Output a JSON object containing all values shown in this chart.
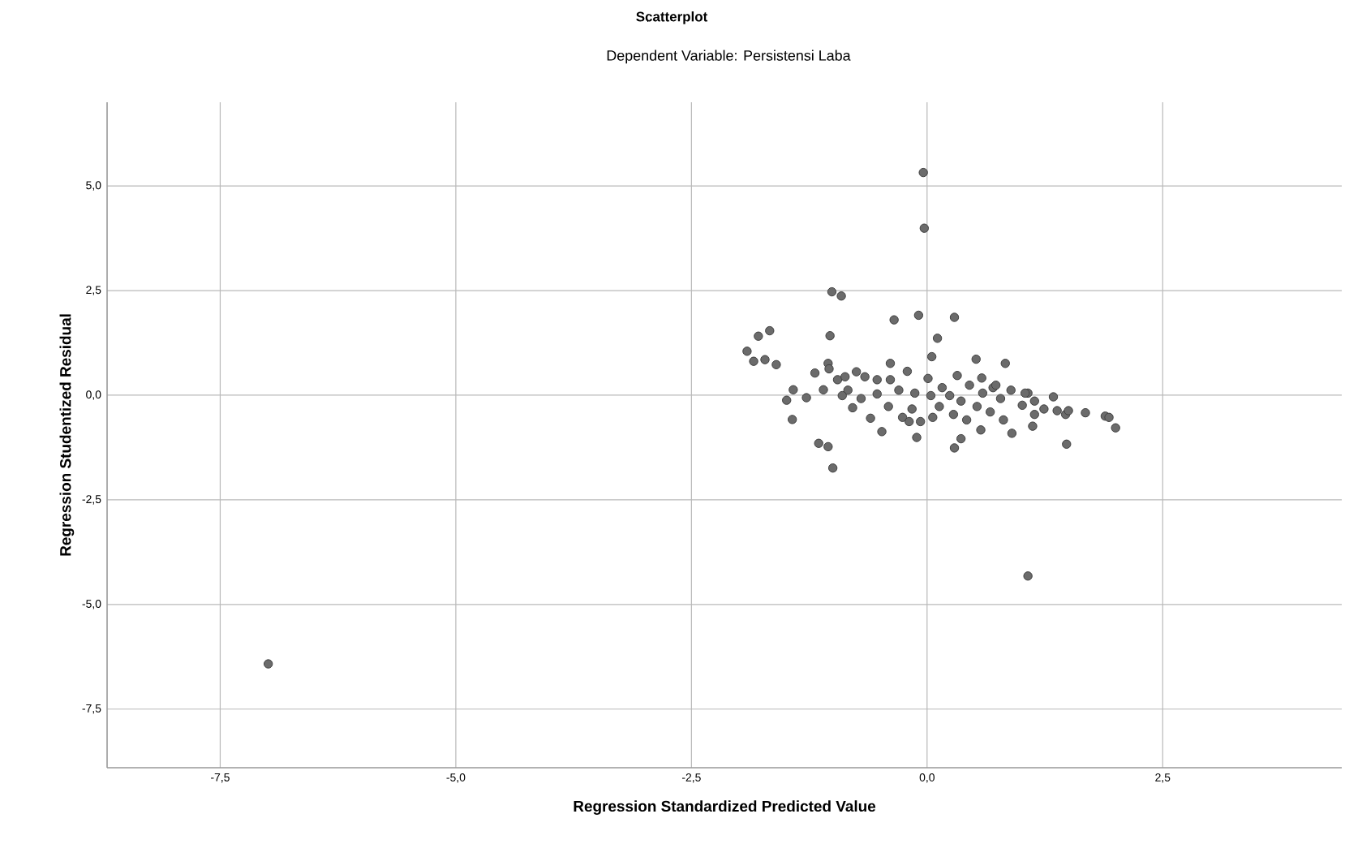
{
  "chart_data": {
    "type": "scatter",
    "title": "Scatterplot",
    "subtitle": "Dependent Variable: Persistensi Laba",
    "xlabel": "Regression Standardized Predicted Value",
    "ylabel": "Regression Studentized Residual",
    "xlim": [
      -8.7,
      4.4
    ],
    "ylim": [
      -8.9,
      7.0
    ],
    "xticks": [
      {
        "value": -7.5,
        "label": "-7,5"
      },
      {
        "value": -5,
        "label": "-5,0"
      },
      {
        "value": -2.5,
        "label": "-2,5"
      },
      {
        "value": 0,
        "label": "0,0"
      },
      {
        "value": 2.5,
        "label": "2,5"
      }
    ],
    "yticks": [
      {
        "value": -7.5,
        "label": "-7,5"
      },
      {
        "value": -5,
        "label": "-5,0"
      },
      {
        "value": -2.5,
        "label": "-2,5"
      },
      {
        "value": 0,
        "label": "0,0"
      },
      {
        "value": 2.5,
        "label": "2,5"
      },
      {
        "value": 5,
        "label": "5,0"
      }
    ],
    "grid": true,
    "marker": "circle",
    "series": [
      {
        "color": "#6b6b6b",
        "x": [
          -6.99,
          -0.04,
          -0.03,
          -1.01,
          -0.91,
          -0.09,
          -0.35,
          0.29,
          -1.03,
          -1.67,
          -1.79,
          0.11,
          -1.91,
          -1.84,
          -1.72,
          -1.6,
          0.05,
          0.52,
          0.83,
          -1.19,
          -1.05,
          -1.42,
          -1.49,
          -1.28,
          -1.43,
          -1.1,
          -1.15,
          -1.05,
          -1.0,
          -0.6,
          -0.48,
          -0.11,
          0.29,
          0.36,
          0.57,
          0.9,
          -1.04,
          -0.95,
          -0.87,
          -0.75,
          -0.84,
          -0.9,
          -0.79,
          -0.7,
          -0.66,
          -0.53,
          -0.53,
          -0.39,
          -0.41,
          -0.39,
          -0.3,
          -0.21,
          -0.26,
          -0.19,
          -0.16,
          -0.13,
          -0.07,
          0.01,
          0.04,
          0.06,
          0.13,
          0.16,
          0.24,
          0.28,
          0.32,
          0.36,
          0.42,
          0.45,
          0.53,
          0.58,
          0.59,
          0.67,
          0.7,
          0.78,
          0.81,
          0.89,
          1.01,
          1.07,
          1.14,
          1.04,
          1.14,
          1.34,
          1.24,
          1.38,
          1.47,
          1.5,
          1.68,
          1.89,
          1.93,
          2.0,
          1.48,
          1.12,
          0.73,
          1.07
        ],
        "values": [
          -6.42,
          5.32,
          3.99,
          2.47,
          2.37,
          1.91,
          1.8,
          1.86,
          1.42,
          1.54,
          1.41,
          1.36,
          1.05,
          0.81,
          0.85,
          0.73,
          0.92,
          0.86,
          0.76,
          0.53,
          0.76,
          0.13,
          -0.12,
          -0.06,
          -0.58,
          0.13,
          -1.15,
          -1.23,
          -1.74,
          -0.55,
          -0.87,
          -1.01,
          -1.26,
          -1.04,
          -0.83,
          -0.91,
          0.63,
          0.37,
          0.44,
          0.56,
          0.12,
          -0.01,
          -0.3,
          -0.08,
          0.44,
          0.37,
          0.03,
          0.76,
          -0.27,
          0.37,
          0.12,
          0.57,
          -0.53,
          -0.63,
          -0.33,
          0.05,
          -0.63,
          0.4,
          -0.01,
          -0.53,
          -0.27,
          0.18,
          -0.01,
          -0.46,
          0.47,
          -0.14,
          -0.59,
          0.24,
          -0.27,
          0.41,
          0.05,
          -0.4,
          0.18,
          -0.08,
          -0.59,
          0.12,
          -0.24,
          0.05,
          -0.46,
          0.05,
          -0.14,
          -0.04,
          -0.33,
          -0.37,
          -0.46,
          -0.37,
          -0.42,
          -0.5,
          -0.53,
          -0.78,
          -1.17,
          -0.74,
          0.24,
          -4.32
        ]
      }
    ]
  }
}
